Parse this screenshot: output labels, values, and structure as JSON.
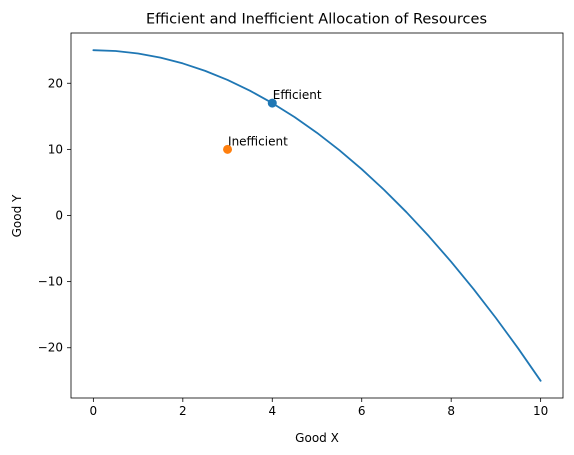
{
  "chart_data": {
    "type": "line",
    "title": "Efficient and Inefficient Allocation of Resources",
    "xlabel": "Good X",
    "ylabel": "Good Y",
    "xlim": [
      -0.5,
      10.5
    ],
    "ylim": [
      -27.6,
      27.6
    ],
    "xticks": [
      0,
      2,
      4,
      6,
      8,
      10
    ],
    "xtick_labels": [
      "0",
      "2",
      "4",
      "6",
      "8",
      "10"
    ],
    "yticks": [
      -20,
      -10,
      0,
      10,
      20
    ],
    "ytick_labels": [
      "−20",
      "−10",
      "0",
      "10",
      "20"
    ],
    "grid": false,
    "series": [
      {
        "type": "line",
        "color": "#1f77b4",
        "x": [
          0,
          0.5,
          1,
          1.5,
          2,
          2.5,
          3,
          3.5,
          4,
          4.5,
          5,
          5.5,
          6,
          6.5,
          7,
          7.5,
          8,
          8.5,
          9,
          9.5,
          10
        ],
        "y": [
          25,
          24.875,
          24.5,
          23.875,
          23,
          21.875,
          20.5,
          18.875,
          17,
          14.875,
          12.5,
          9.875,
          7,
          3.875,
          0.5,
          -3.125,
          -7,
          -11.125,
          -15.5,
          -20.125,
          -25
        ]
      },
      {
        "type": "scatter",
        "color": "#1f77b4",
        "x": [
          4
        ],
        "y": [
          17
        ]
      },
      {
        "type": "scatter",
        "color": "#ff7f0e",
        "x": [
          3
        ],
        "y": [
          10
        ]
      }
    ],
    "annotations": [
      {
        "text": "Efficient",
        "x": 4,
        "y": 17
      },
      {
        "text": "Inefficient",
        "x": 3,
        "y": 10
      }
    ]
  }
}
